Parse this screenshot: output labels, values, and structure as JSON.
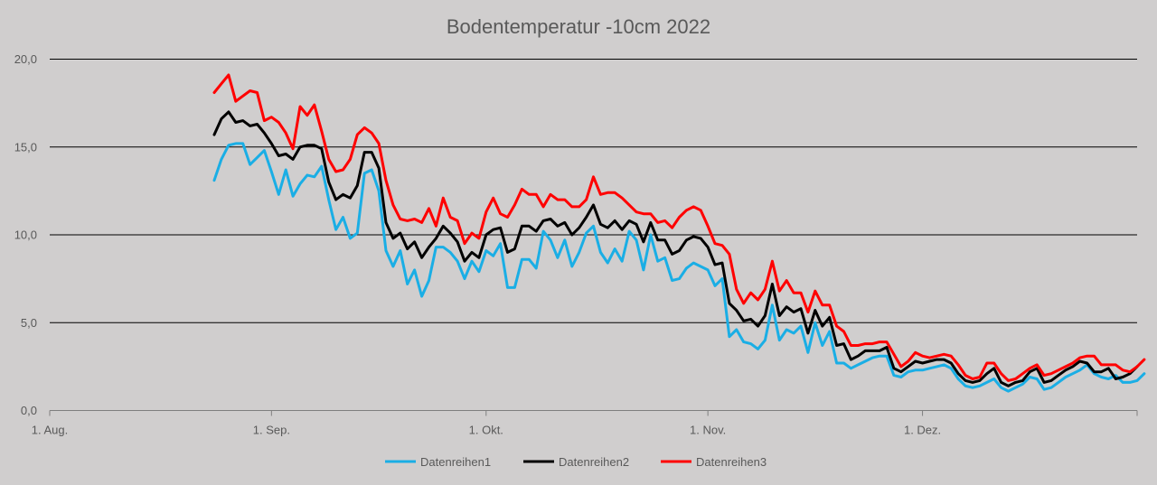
{
  "chart_data": {
    "type": "line",
    "title": "Bodentemperatur -10cm 2022",
    "xlabel": "",
    "ylabel": "",
    "ylim": [
      0,
      20
    ],
    "yticks": [
      "0,0",
      "5,0",
      "10,0",
      "15,0",
      "20,0"
    ],
    "ytick_values": [
      0,
      5,
      10,
      15,
      20
    ],
    "xlim": [
      0,
      152
    ],
    "xticks": [
      "1. Aug.",
      "1. Sep.",
      "1. Okt.",
      "1. Nov.",
      "1. Dez."
    ],
    "xtick_days": [
      0,
      31,
      61,
      92,
      122
    ],
    "x_start_day": 23,
    "legend_position": "bottom",
    "grid": true,
    "colors": [
      "#1aaee5",
      "#000000",
      "#ff0000"
    ],
    "series": [
      {
        "name": "Datenreihen1",
        "color": "#1aaee5",
        "values": [
          13.1,
          14.3,
          15.1,
          15.2,
          15.2,
          14.0,
          14.4,
          14.8,
          13.6,
          12.3,
          13.7,
          12.2,
          12.9,
          13.4,
          13.3,
          13.9,
          12.0,
          10.3,
          11.0,
          9.8,
          10.1,
          13.5,
          13.7,
          12.5,
          9.1,
          8.2,
          9.1,
          7.2,
          8.0,
          6.5,
          7.4,
          9.3,
          9.3,
          9.0,
          8.5,
          7.5,
          8.5,
          7.9,
          9.1,
          8.8,
          9.5,
          7.0,
          7.0,
          8.6,
          8.6,
          8.1,
          10.2,
          9.7,
          8.7,
          9.7,
          8.2,
          9.0,
          10.1,
          10.5,
          9.0,
          8.4,
          9.2,
          8.5,
          10.2,
          9.7,
          8.0,
          10.0,
          8.5,
          8.7,
          7.4,
          7.5,
          8.1,
          8.4,
          8.2,
          8.0,
          7.1,
          7.5,
          4.2,
          4.6,
          3.9,
          3.8,
          3.5,
          4.0,
          6.0,
          4.0,
          4.6,
          4.4,
          4.8,
          3.3,
          5.0,
          3.7,
          4.5,
          2.7,
          2.7,
          2.4,
          2.6,
          2.8,
          3.0,
          3.1,
          3.1,
          2.0,
          1.9,
          2.2,
          2.3,
          2.3,
          2.4,
          2.5,
          2.6,
          2.4,
          1.8,
          1.4,
          1.3,
          1.4,
          1.6,
          1.8,
          1.3,
          1.1,
          1.3,
          1.5,
          1.9,
          1.8,
          1.2,
          1.3,
          1.6,
          1.9,
          2.1,
          2.3,
          2.6,
          2.1,
          1.9,
          1.8,
          2.0,
          1.6,
          1.6,
          1.7,
          2.1
        ]
      },
      {
        "name": "Datenreihen2",
        "color": "#000000",
        "values": [
          15.7,
          16.6,
          17.0,
          16.4,
          16.5,
          16.2,
          16.3,
          15.8,
          15.2,
          14.5,
          14.6,
          14.3,
          15.0,
          15.1,
          15.1,
          14.9,
          13.0,
          12.0,
          12.3,
          12.1,
          12.8,
          14.7,
          14.7,
          13.8,
          10.7,
          9.8,
          10.1,
          9.2,
          9.6,
          8.7,
          9.3,
          9.8,
          10.5,
          10.1,
          9.6,
          8.5,
          9.0,
          8.7,
          10.0,
          10.3,
          10.4,
          9.0,
          9.2,
          10.5,
          10.5,
          10.2,
          10.8,
          10.9,
          10.5,
          10.7,
          10.0,
          10.4,
          11.0,
          11.7,
          10.6,
          10.4,
          10.8,
          10.3,
          10.8,
          10.6,
          9.6,
          10.7,
          9.7,
          9.7,
          8.9,
          9.1,
          9.7,
          9.9,
          9.8,
          9.3,
          8.3,
          8.4,
          6.1,
          5.7,
          5.1,
          5.2,
          4.8,
          5.4,
          7.2,
          5.4,
          5.9,
          5.6,
          5.8,
          4.4,
          5.7,
          4.8,
          5.3,
          3.7,
          3.8,
          2.9,
          3.1,
          3.4,
          3.4,
          3.4,
          3.6,
          2.4,
          2.2,
          2.5,
          2.8,
          2.7,
          2.8,
          2.9,
          2.9,
          2.7,
          2.1,
          1.7,
          1.6,
          1.7,
          2.1,
          2.4,
          1.6,
          1.4,
          1.6,
          1.7,
          2.2,
          2.4,
          1.6,
          1.7,
          2.0,
          2.3,
          2.5,
          2.8,
          2.7,
          2.2,
          2.2,
          2.4,
          1.8,
          1.9,
          2.1,
          2.5
        ]
      },
      {
        "name": "Datenreihen3",
        "color": "#ff0000",
        "values": [
          18.1,
          18.6,
          19.1,
          17.6,
          17.9,
          18.2,
          18.1,
          16.5,
          16.7,
          16.4,
          15.8,
          14.9,
          17.3,
          16.8,
          17.4,
          15.9,
          14.3,
          13.6,
          13.7,
          14.3,
          15.7,
          16.1,
          15.8,
          15.2,
          13.1,
          11.7,
          10.9,
          10.8,
          10.9,
          10.7,
          11.5,
          10.5,
          12.1,
          11.0,
          10.8,
          9.5,
          10.1,
          9.8,
          11.3,
          12.1,
          11.2,
          11.0,
          11.7,
          12.6,
          12.3,
          12.3,
          11.6,
          12.3,
          12.0,
          12.0,
          11.6,
          11.6,
          12.0,
          13.3,
          12.3,
          12.4,
          12.4,
          12.1,
          11.7,
          11.3,
          11.2,
          11.2,
          10.7,
          10.8,
          10.4,
          11.0,
          11.4,
          11.6,
          11.4,
          10.5,
          9.5,
          9.4,
          8.9,
          6.9,
          6.1,
          6.7,
          6.3,
          6.9,
          8.5,
          6.8,
          7.4,
          6.7,
          6.7,
          5.6,
          6.8,
          6.0,
          6.0,
          4.8,
          4.5,
          3.7,
          3.7,
          3.8,
          3.8,
          3.9,
          3.9,
          3.2,
          2.5,
          2.8,
          3.3,
          3.1,
          3.0,
          3.1,
          3.2,
          3.1,
          2.6,
          2.0,
          1.8,
          1.9,
          2.7,
          2.7,
          2.1,
          1.7,
          1.8,
          2.1,
          2.4,
          2.6,
          2.0,
          2.1,
          2.3,
          2.5,
          2.7,
          3.0,
          3.1,
          3.1,
          2.6,
          2.6,
          2.6,
          2.3,
          2.2,
          2.5,
          2.9
        ]
      }
    ]
  }
}
